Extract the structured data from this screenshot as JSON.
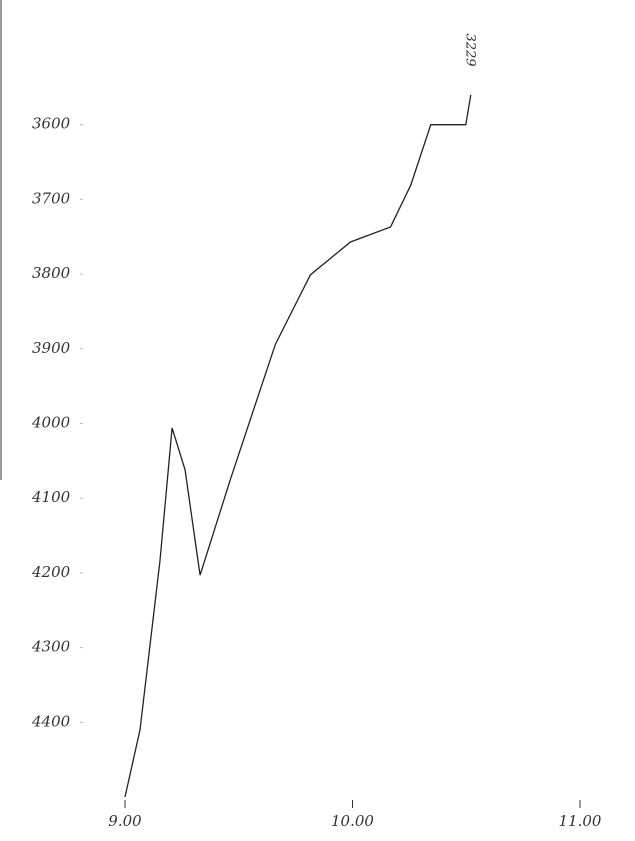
{
  "chart_data": {
    "type": "line",
    "annotation": "3229",
    "x": [
      9.0,
      9.066,
      9.154,
      9.207,
      9.264,
      9.33,
      9.463,
      9.661,
      9.815,
      9.991,
      10.167,
      10.256,
      10.344,
      10.498,
      10.52
    ],
    "series": [
      {
        "color": "#222222",
        "values": [
          4500,
          4410,
          4183,
          4006,
          4062,
          4203,
          4075,
          3894,
          3801,
          3757,
          3737,
          3681,
          3600,
          3600,
          3560
        ]
      }
    ],
    "xlim": [
      9,
      11
    ],
    "xticks": [
      {
        "value": 9,
        "label": "9.00"
      },
      {
        "value": 10,
        "label": "10.00"
      },
      {
        "value": 11,
        "label": "11.00"
      }
    ],
    "ylim": [
      3500,
      4500
    ],
    "yticks": [
      3600,
      3700,
      3800,
      3900,
      4000,
      4100,
      4200,
      4300,
      4400
    ],
    "y_inverted": true
  }
}
